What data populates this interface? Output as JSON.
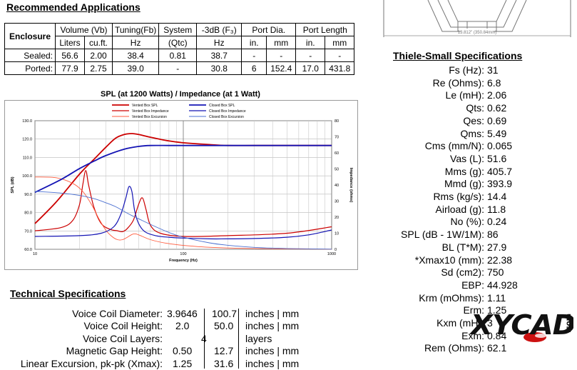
{
  "apps": {
    "title": "Recommended Applications",
    "header1": [
      "Enclosure",
      "Volume (Vb)",
      "Tuning(Fb)",
      "System",
      "-3dB (F₃)",
      "Port Dia.",
      "Port Length"
    ],
    "header2": [
      "Liters",
      "cu.ft.",
      "Hz",
      "(Qtc)",
      "Hz",
      "in.",
      "mm",
      "in.",
      "mm"
    ],
    "rows": [
      {
        "label": "Sealed:",
        "cells": [
          "56.6",
          "2.00",
          "38.4",
          "0.81",
          "38.7",
          "-",
          "-",
          "-",
          "-"
        ]
      },
      {
        "label": "Ported:",
        "cells": [
          "77.9",
          "2.75",
          "39.0",
          "-",
          "30.8",
          "6",
          "152.4",
          "17.0",
          "431.8"
        ]
      }
    ]
  },
  "drawing": {
    "dimension_text": "13.812\" (350.84mm)"
  },
  "chart_data": {
    "type": "line",
    "title": "SPL (at 1200 Watts) / Impedance (at 1 Watt)",
    "xlabel": "Frequency (Hz)",
    "ylabel": "SPL (dB)",
    "y2label": "Impedance (ohms)",
    "xscale": "log",
    "xlim": [
      10,
      1000
    ],
    "ylim": [
      60,
      130
    ],
    "y2lim": [
      0,
      80
    ],
    "xticks": [
      "10",
      "100",
      "1000"
    ],
    "yticks": [
      "60.0",
      "70.0",
      "80.0",
      "90.0",
      "100.0",
      "110.0",
      "120.0",
      "130.0"
    ],
    "y2ticks": [
      "0",
      "10",
      "20",
      "30",
      "40",
      "50",
      "60",
      "70",
      "80"
    ],
    "legend": [
      "Vented Box SPL",
      "Vented Box Impedance",
      "Vented Box Excursion",
      "Closed Box SPL",
      "Closed Box Impedance",
      "Closed Box Excursion"
    ],
    "series": [
      {
        "name": "Vented Box SPL",
        "color": "#cc0000",
        "axis": "left",
        "x": [
          10,
          14,
          20,
          25,
          30,
          35,
          40,
          45,
          50,
          60,
          80,
          100,
          150,
          200,
          300,
          500,
          1000
        ],
        "y": [
          74,
          86,
          101,
          109,
          115.5,
          120.5,
          122.5,
          123,
          122.5,
          121,
          119,
          118,
          117,
          116.5,
          116.5,
          116.5,
          116.5
        ]
      },
      {
        "name": "Vented Box Impedance",
        "color": "#cc0000",
        "axis": "right",
        "x": [
          10,
          15,
          18,
          20,
          21,
          22,
          23,
          25,
          28,
          32,
          36,
          39,
          42,
          46,
          50,
          53,
          56,
          60,
          70,
          100,
          200,
          500,
          1000
        ],
        "y": [
          11.5,
          13.5,
          18,
          28,
          40,
          49,
          40,
          26,
          16,
          12.5,
          11.5,
          11,
          13,
          18,
          28,
          32,
          25,
          15,
          10,
          8,
          8.5,
          10,
          14
        ]
      },
      {
        "name": "Vented Box Excursion",
        "color": "#ff5a3c",
        "axis": "right",
        "x": [
          10,
          14,
          18,
          21,
          24,
          27,
          30,
          33,
          36,
          39,
          42,
          46,
          50,
          60,
          80,
          120,
          200,
          400,
          1000
        ],
        "y": [
          45,
          44.5,
          41,
          36,
          28,
          19,
          12,
          8,
          6,
          6,
          7.5,
          9.5,
          9,
          6,
          3.5,
          1.8,
          0.8,
          0.3,
          0.1
        ]
      },
      {
        "name": "Closed Box SPL",
        "color": "#1414b4",
        "axis": "left",
        "x": [
          10,
          15,
          20,
          25,
          30,
          40,
          50,
          60,
          80,
          100,
          200,
          500,
          1000
        ],
        "y": [
          91,
          98,
          104,
          108,
          111,
          114.5,
          116,
          116.5,
          116.5,
          116.5,
          116.5,
          116.5,
          116.5
        ]
      },
      {
        "name": "Closed Box Impedance",
        "color": "#1414b4",
        "axis": "right",
        "x": [
          10,
          20,
          28,
          34,
          38,
          41,
          43,
          45,
          47,
          50,
          55,
          65,
          80,
          100,
          150,
          200,
          300,
          500,
          700,
          1000
        ],
        "y": [
          8,
          8.5,
          10,
          14,
          22,
          32,
          39,
          36,
          24,
          16,
          11,
          8.5,
          7.5,
          7,
          6.5,
          6.5,
          6.7,
          7.5,
          9,
          12
        ]
      },
      {
        "name": "Closed Box Excursion",
        "color": "#4a6fd0",
        "axis": "right",
        "x": [
          10,
          15,
          20,
          25,
          30,
          35,
          40,
          45,
          50,
          60,
          80,
          100,
          150,
          200,
          300,
          500,
          1000
        ],
        "y": [
          36,
          35,
          33.5,
          31.5,
          29,
          26.5,
          23.5,
          21,
          19,
          15.5,
          10.5,
          7.5,
          4,
          2.5,
          1.2,
          0.5,
          0.1
        ]
      }
    ]
  },
  "tech": {
    "title": "Technical Specifications",
    "rows": [
      {
        "label": "Voice Coil Diameter:",
        "v1": "3.9646",
        "v2": "100.7",
        "unit": "inches | mm"
      },
      {
        "label": "Voice Coil Height:",
        "v1": "2.0",
        "v2": "50.0",
        "unit": "inches | mm"
      },
      {
        "label": "Voice Coil Layers:",
        "v1": "",
        "v2": "4",
        "unit": "layers"
      },
      {
        "label": "Magnetic Gap Height:",
        "v1": "0.50",
        "v2": "12.7",
        "unit": "inches | mm"
      },
      {
        "label": "Linear Excursion, pk-pk (Xmax):",
        "v1": "1.25",
        "v2": "31.6",
        "unit": "inches | mm"
      }
    ]
  },
  "ts": {
    "title": "Thiele-Small Specifications",
    "rows": [
      {
        "k": "Fs (Hz):",
        "v": "31"
      },
      {
        "k": "Re (Ohms):",
        "v": "6.8"
      },
      {
        "k": "Le (mH):",
        "v": "2.06"
      },
      {
        "k": "Qts:",
        "v": "0.62"
      },
      {
        "k": "Qes:",
        "v": "0.69"
      },
      {
        "k": "Qms:",
        "v": "5.49"
      },
      {
        "k": "Cms (mm/N):",
        "v": "0.065"
      },
      {
        "k": "Vas (L):",
        "v": "51.6"
      },
      {
        "k": "Mms (g):",
        "v": "405.7"
      },
      {
        "k": "Mmd (g):",
        "v": "393.9"
      },
      {
        "k": "Rms (kg/s):",
        "v": "14.4"
      },
      {
        "k": "Airload (g):",
        "v": "11.8"
      },
      {
        "k": "No (%):",
        "v": "0.24"
      },
      {
        "k": "SPL (dB - 1W/1M):",
        "v": "86"
      },
      {
        "k": "BL (T*M):",
        "v": "27.9"
      },
      {
        "k": "*Xmax10 (mm):",
        "v": "22.38"
      },
      {
        "k": "Sd (cm2):",
        "v": "750"
      },
      {
        "k": "EBP:",
        "v": "44.928"
      },
      {
        "k": "Krm (mOhms):",
        "v": "1.11"
      },
      {
        "k": "Erm:",
        "v": "1.25"
      },
      {
        "k": "Kxm (mH):",
        "v": "3"
      },
      {
        "k": "Exm:",
        "v": "0.84"
      },
      {
        "k": "Rem (Ohms):",
        "v": "62.1"
      }
    ]
  },
  "logo": {
    "text": "XYCAD",
    "suffix": ".com",
    "colors": {
      "main": "#111111",
      "accent": "#cc1111"
    }
  }
}
